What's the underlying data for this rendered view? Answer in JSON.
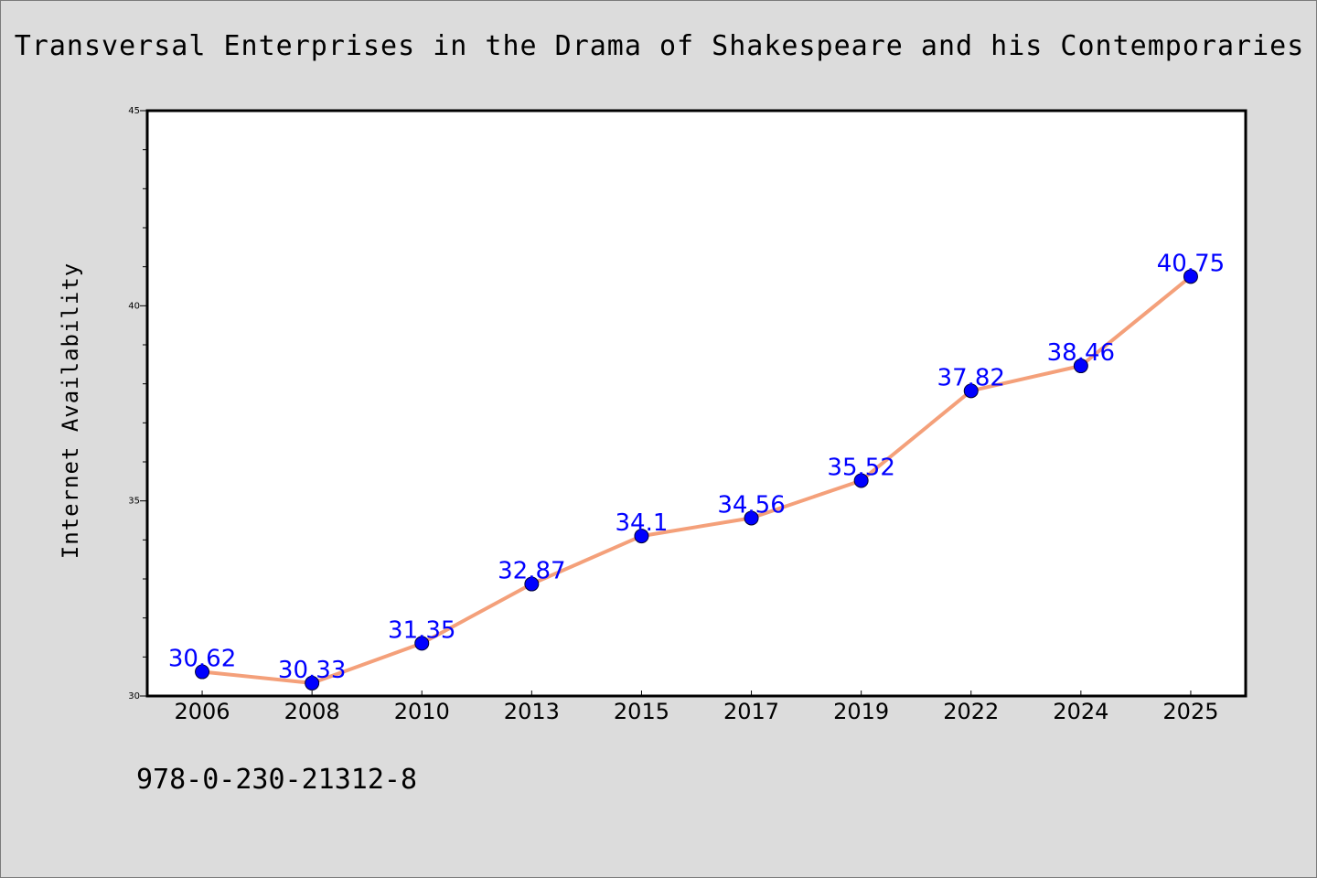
{
  "chart_data": {
    "type": "line",
    "title": "Transversal Enterprises in the Drama of Shakespeare and his Contemporaries",
    "footnote": "978-0-230-21312-8",
    "xlabel": "",
    "ylabel": "Internet Availability",
    "categories": [
      "2006",
      "2008",
      "2010",
      "2013",
      "2015",
      "2017",
      "2019",
      "2022",
      "2024",
      "2025"
    ],
    "series": [
      {
        "values": [
          30.62,
          30.33,
          31.35,
          32.87,
          34.1,
          34.56,
          35.52,
          37.82,
          38.46,
          40.75
        ],
        "data_labels": [
          "30.62",
          "30.33",
          "31.35",
          "32.87",
          "34.1",
          "34.56",
          "35.52",
          "37.82",
          "38.46",
          "40.75"
        ],
        "line_color": "#f4a07a",
        "marker_color": "#0000ff"
      }
    ],
    "ylim": [
      30,
      45
    ],
    "yticks": [
      "30",
      "35",
      "40",
      "45"
    ],
    "y_minor_step": 1,
    "grid": false,
    "legend": "none",
    "colors": {
      "background": "#dcdcdc",
      "plot_background": "#ffffff",
      "line": "#f4a07a",
      "marker": "#0000ff",
      "data_label": "#0000ff"
    }
  }
}
